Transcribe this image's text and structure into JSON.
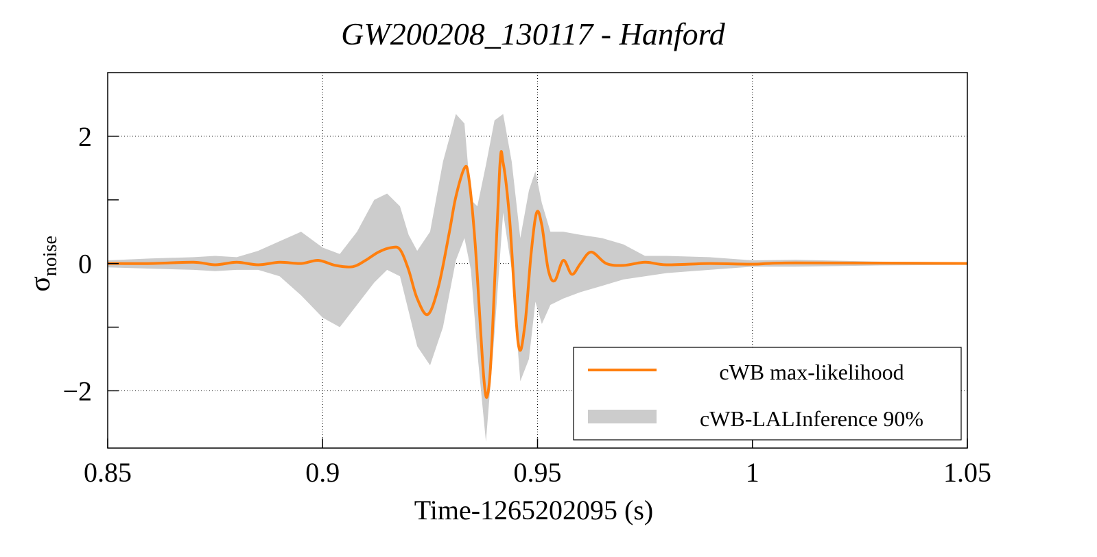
{
  "chart_data": {
    "type": "line",
    "title": "GW200208_130117 - Hanford",
    "xlabel": "Time-1265202095 (s)",
    "ylabel_symbol": "σ",
    "ylabel_subscript": "noise",
    "xlim": [
      0.85,
      1.05
    ],
    "ylim": [
      -2.9,
      3.0
    ],
    "xticks": [
      0.85,
      0.9,
      0.95,
      1.0,
      1.05
    ],
    "xtick_labels": [
      "0.85",
      "0.9",
      "0.95",
      "1",
      "1.05"
    ],
    "yticks": [
      -2,
      0,
      2
    ],
    "ytick_labels": [
      "−2",
      "0",
      "2"
    ],
    "y_minor_ticks": [
      -1,
      1
    ],
    "grid": true,
    "legend_position": "bottom-right",
    "colors": {
      "max_likelihood": "#ff7f0e",
      "band": "#cccccc"
    },
    "series": [
      {
        "name": "cWB max-likelihood",
        "kind": "line",
        "x": [
          0.85,
          0.86,
          0.87,
          0.875,
          0.88,
          0.885,
          0.89,
          0.895,
          0.899,
          0.903,
          0.907,
          0.91,
          0.913,
          0.916,
          0.918,
          0.92,
          0.922,
          0.9245,
          0.927,
          0.9295,
          0.931,
          0.933,
          0.934,
          0.9355,
          0.9375,
          0.9385,
          0.9395,
          0.9412,
          0.942,
          0.9435,
          0.9455,
          0.947,
          0.9485,
          0.9498,
          0.951,
          0.9525,
          0.954,
          0.956,
          0.958,
          0.96,
          0.9625,
          0.966,
          0.97,
          0.975,
          0.98,
          0.99,
          1.0,
          1.01,
          1.05
        ],
        "values": [
          0.0,
          0.0,
          0.02,
          -0.02,
          0.02,
          -0.02,
          0.02,
          0.0,
          0.05,
          -0.03,
          -0.05,
          0.05,
          0.18,
          0.25,
          0.22,
          -0.1,
          -0.55,
          -0.8,
          -0.35,
          0.5,
          1.05,
          1.5,
          1.35,
          0.3,
          -1.8,
          -2.02,
          -1.1,
          1.5,
          1.58,
          0.7,
          -1.25,
          -1.0,
          0.15,
          0.8,
          0.6,
          -0.1,
          -0.27,
          0.05,
          -0.17,
          0.0,
          0.18,
          0.0,
          -0.03,
          0.02,
          -0.02,
          0.0,
          -0.01,
          0.01,
          0.0
        ]
      },
      {
        "name": "cWB-LALInference 90%",
        "kind": "band",
        "x": [
          0.85,
          0.86,
          0.87,
          0.875,
          0.88,
          0.885,
          0.89,
          0.895,
          0.9,
          0.904,
          0.908,
          0.912,
          0.915,
          0.918,
          0.92,
          0.922,
          0.925,
          0.928,
          0.931,
          0.933,
          0.9345,
          0.936,
          0.938,
          0.94,
          0.942,
          0.944,
          0.946,
          0.948,
          0.9495,
          0.951,
          0.953,
          0.956,
          0.96,
          0.965,
          0.97,
          0.975,
          0.98,
          0.99,
          1.0,
          1.01,
          1.03,
          1.05
        ],
        "upper": [
          0.05,
          0.08,
          0.1,
          0.12,
          0.1,
          0.2,
          0.35,
          0.5,
          0.25,
          0.15,
          0.5,
          1.0,
          1.1,
          0.9,
          0.45,
          0.2,
          0.5,
          1.6,
          2.35,
          2.2,
          1.0,
          0.9,
          1.55,
          2.25,
          2.35,
          1.6,
          0.4,
          1.15,
          1.45,
          0.95,
          0.5,
          0.5,
          0.45,
          0.4,
          0.3,
          0.12,
          0.12,
          0.1,
          0.05,
          0.06,
          0.03,
          0.02
        ],
        "lower": [
          -0.06,
          -0.08,
          -0.1,
          -0.12,
          -0.1,
          -0.1,
          -0.2,
          -0.5,
          -0.85,
          -1.0,
          -0.65,
          -0.3,
          -0.1,
          -0.2,
          -0.75,
          -1.3,
          -1.6,
          -1.0,
          0.05,
          0.4,
          -0.1,
          -1.4,
          -2.8,
          -1.1,
          0.8,
          -0.1,
          -1.85,
          -1.5,
          -0.6,
          -0.95,
          -0.65,
          -0.55,
          -0.45,
          -0.35,
          -0.25,
          -0.2,
          -0.15,
          -0.1,
          -0.05,
          -0.05,
          -0.03,
          -0.02
        ]
      }
    ]
  }
}
